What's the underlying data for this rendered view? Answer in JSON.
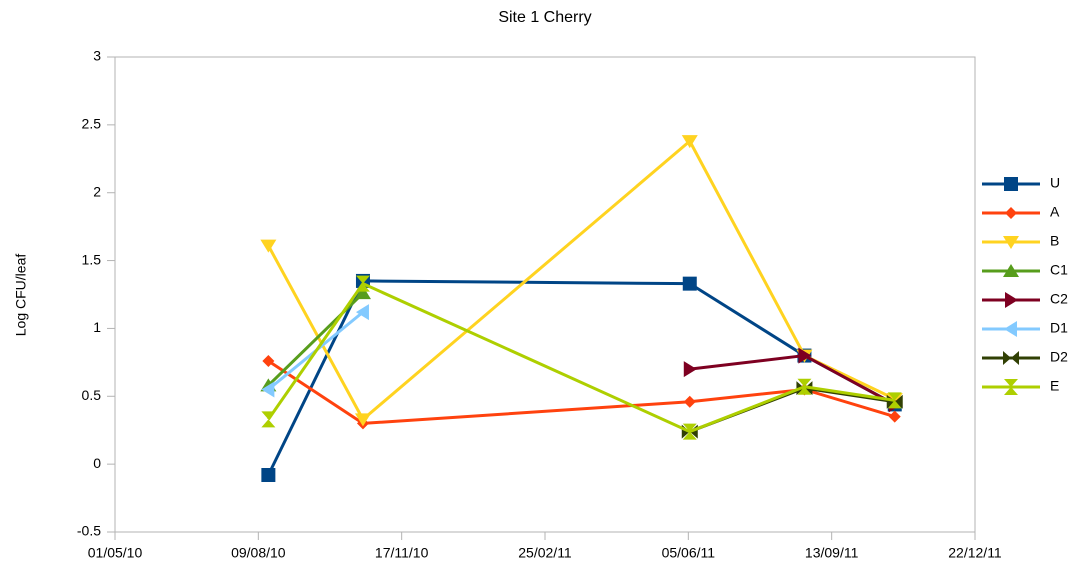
{
  "chart_data": {
    "type": "line",
    "title": "Site 1 Cherry",
    "y_label": "Log CFU/leaf",
    "x": [
      "16/08/10",
      "21/10/10",
      "06/06/11",
      "25/08/11",
      "27/10/11"
    ],
    "xlim": [
      "01/05/10",
      "22/12/11"
    ],
    "xticks": [
      "01/05/10",
      "09/08/10",
      "17/11/10",
      "25/02/11",
      "05/06/11",
      "13/09/11",
      "22/12/11"
    ],
    "ylim": [
      -0.5,
      3
    ],
    "yticks": [
      -0.5,
      0,
      0.5,
      1,
      1.5,
      2,
      2.5,
      3
    ],
    "grid": false,
    "legend": "right",
    "series": [
      {
        "name": "U",
        "color": "#004586",
        "marker": "square",
        "values": [
          -0.08,
          1.35,
          1.33,
          0.8,
          0.44
        ]
      },
      {
        "name": "A",
        "color": "#ff420e",
        "marker": "diamond",
        "values": [
          0.76,
          0.3,
          0.46,
          0.55,
          0.35
        ]
      },
      {
        "name": "B",
        "color": "#ffd320",
        "marker": "triangle-down",
        "values": [
          1.61,
          0.33,
          2.38,
          0.8,
          0.48
        ]
      },
      {
        "name": "C1",
        "color": "#579d1c",
        "marker": "triangle-up",
        "values": [
          0.58,
          1.26,
          null,
          null,
          null
        ]
      },
      {
        "name": "C2",
        "color": "#7e0021",
        "marker": "triangle-right",
        "values": [
          null,
          null,
          0.7,
          0.8,
          0.44
        ]
      },
      {
        "name": "D1",
        "color": "#83caff",
        "marker": "triangle-left",
        "values": [
          0.55,
          1.12,
          null,
          null,
          null
        ]
      },
      {
        "name": "D2",
        "color": "#314004",
        "marker": "bowtie",
        "values": [
          null,
          null,
          0.24,
          0.56,
          0.46
        ]
      },
      {
        "name": "E",
        "color": "#aecf00",
        "marker": "hourglass",
        "values": [
          0.33,
          1.33,
          0.24,
          0.57,
          0.47
        ]
      }
    ]
  }
}
